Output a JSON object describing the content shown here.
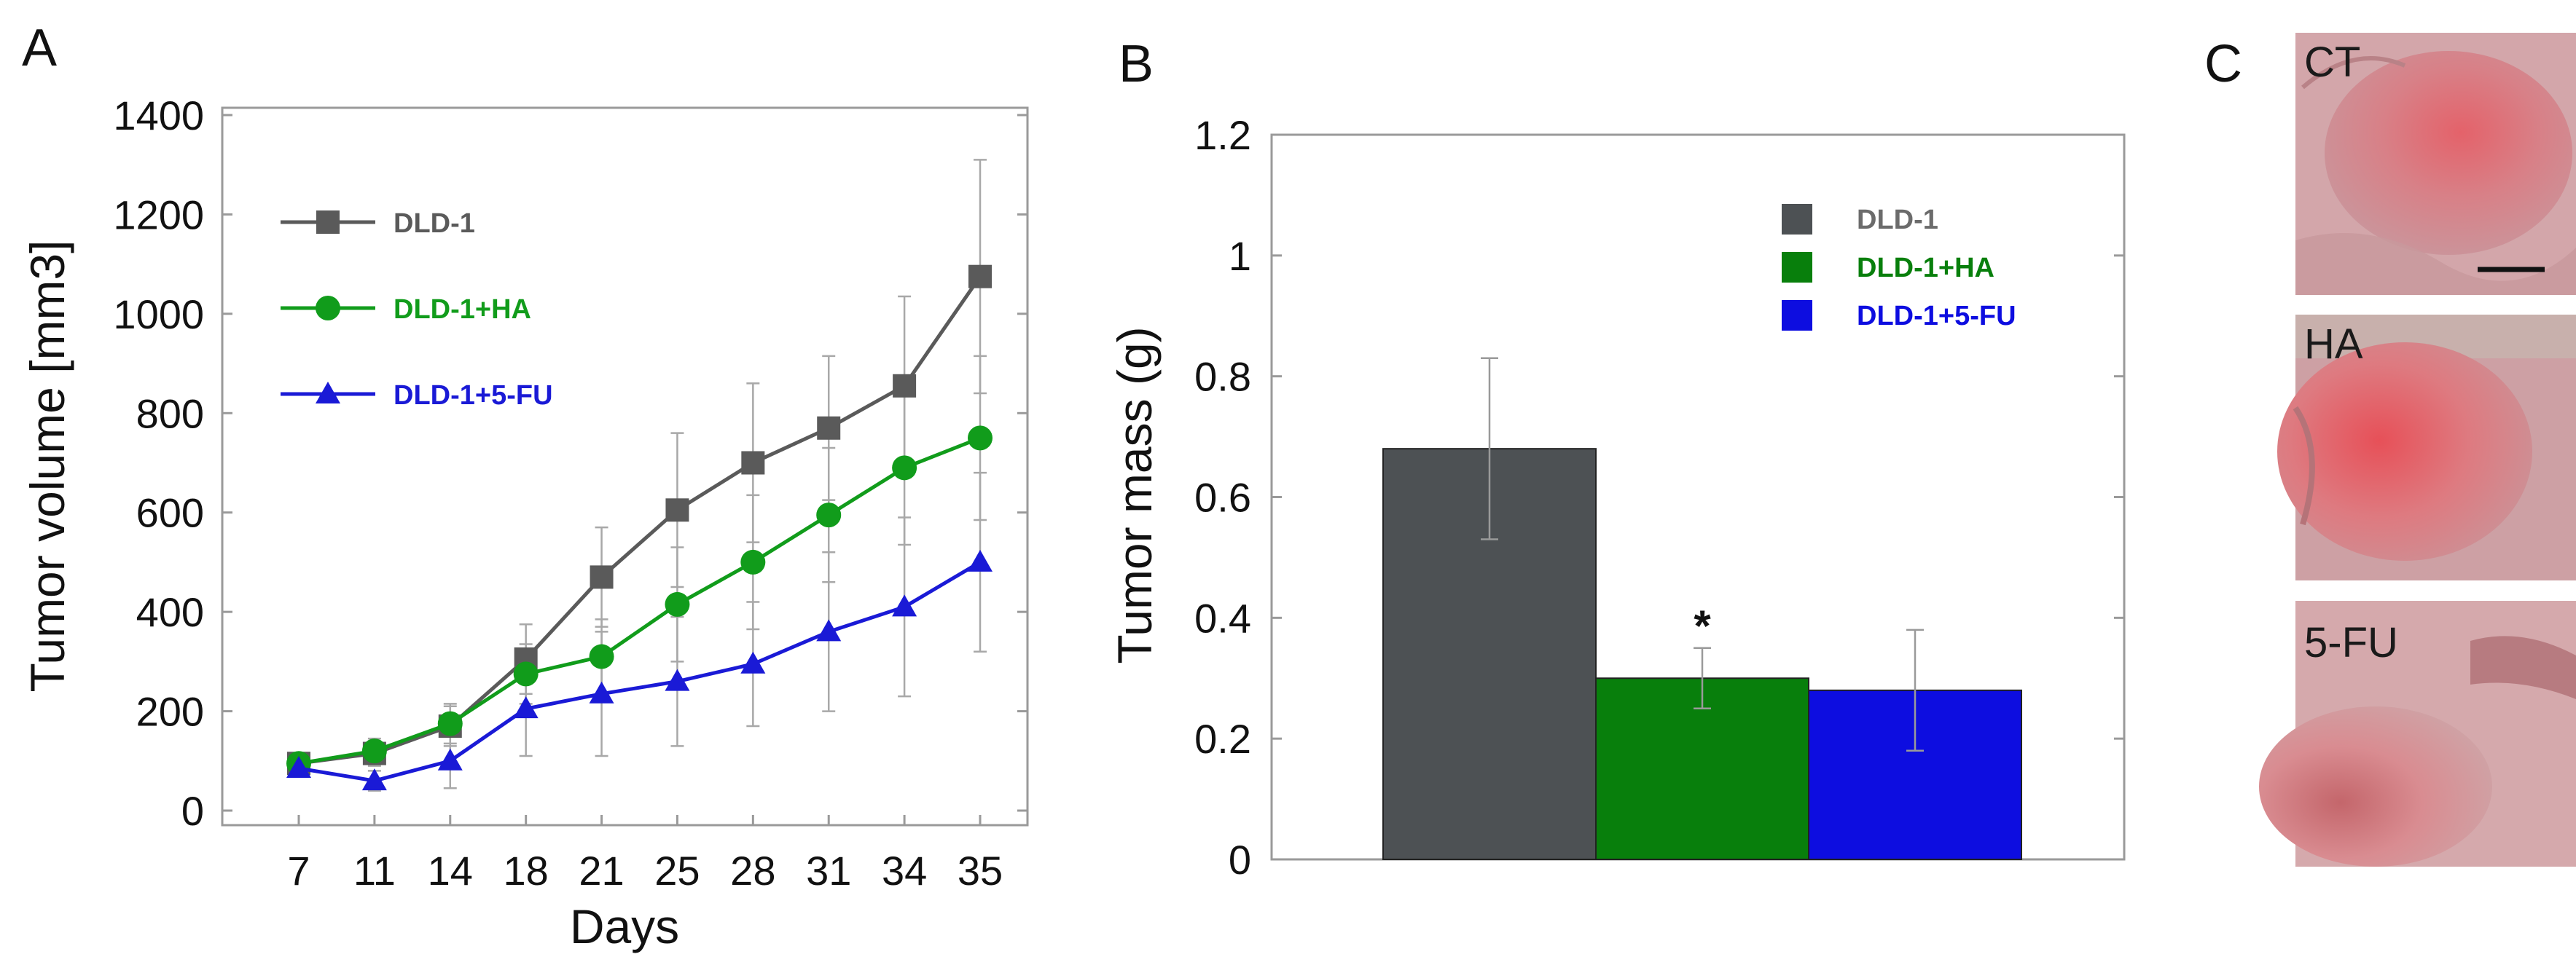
{
  "panels": {
    "a": "A",
    "b": "B",
    "c": "C"
  },
  "chart_data": [
    {
      "type": "line",
      "panel": "A",
      "xlabel": "Days",
      "ylabel": "Tumor volume [mm3]",
      "ylim": [
        0,
        1400
      ],
      "yticks": [
        0,
        200,
        400,
        600,
        800,
        1000,
        1200,
        1400
      ],
      "categories": [
        "7",
        "11",
        "14",
        "18",
        "21",
        "25",
        "28",
        "31",
        "34",
        "35"
      ],
      "legend_position": "top-left",
      "series": [
        {
          "name": "DLD-1",
          "color": "#5a5a5a",
          "marker": "square",
          "values": [
            95,
            115,
            170,
            305,
            470,
            605,
            700,
            770,
            855,
            1075
          ],
          "errors": [
            15,
            25,
            40,
            70,
            100,
            155,
            160,
            145,
            180,
            235
          ]
        },
        {
          "name": "DLD-1+HA",
          "color": "#119c1b",
          "marker": "circle",
          "values": [
            95,
            120,
            175,
            275,
            310,
            415,
            500,
            595,
            690,
            750
          ],
          "errors": [
            15,
            25,
            40,
            60,
            75,
            115,
            135,
            135,
            155,
            165
          ]
        },
        {
          "name": "DLD-1+5-FU",
          "color": "#1a1ad6",
          "marker": "triangle",
          "values": [
            85,
            60,
            100,
            205,
            235,
            260,
            295,
            360,
            410,
            500
          ],
          "errors": [
            15,
            20,
            55,
            95,
            125,
            130,
            125,
            160,
            180,
            180
          ]
        }
      ]
    },
    {
      "type": "bar",
      "panel": "B",
      "xlabel": "",
      "ylabel": "Tumor mass (g)",
      "ylim": [
        0,
        1.2
      ],
      "yticks": [
        "0",
        "0.2",
        "0.4",
        "0.6",
        "0.8",
        "1",
        "1.2"
      ],
      "legend_position": "top-right",
      "bars": [
        {
          "name": "DLD-1",
          "value": 0.68,
          "error": 0.15,
          "color": "#4d5154",
          "annotation": ""
        },
        {
          "name": "DLD-1+HA",
          "value": 0.3,
          "error": 0.05,
          "color": "#087f0c",
          "annotation": "*"
        },
        {
          "name": "DLD-1+5-FU",
          "value": 0.28,
          "error": 0.1,
          "color": "#0d0de0",
          "annotation": ""
        }
      ]
    }
  ],
  "photos": [
    {
      "label": "CT",
      "scale_bar": true
    },
    {
      "label": "HA",
      "scale_bar": false
    },
    {
      "label": "5-FU",
      "scale_bar": false
    }
  ]
}
